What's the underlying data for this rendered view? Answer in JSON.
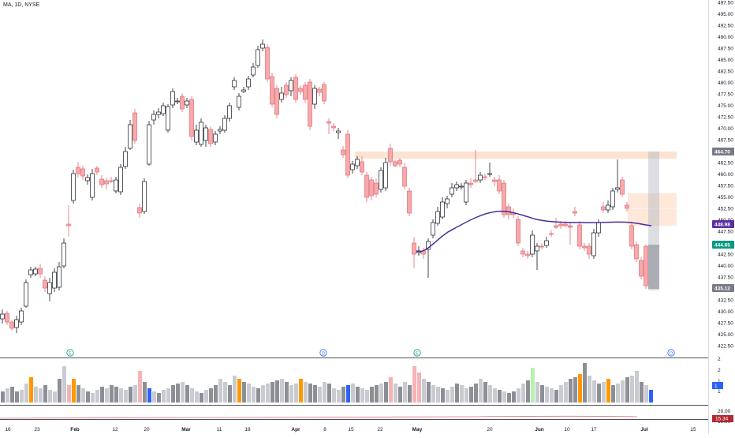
{
  "header": {
    "symbol_line": "MA, 1D, NYSE"
  },
  "price_axis": {
    "labels": [
      "497.50",
      "495.00",
      "492.50",
      "490.00",
      "487.50",
      "485.00",
      "482.50",
      "480.00",
      "477.50",
      "475.00",
      "472.50",
      "470.00",
      "467.50",
      "465.00",
      "462.50",
      "460.00",
      "457.50",
      "455.00",
      "452.50",
      "450.00",
      "447.50",
      "445.00",
      "442.50",
      "440.00",
      "437.50",
      "435.00",
      "432.50",
      "430.00",
      "427.50",
      "425.00",
      "422.50"
    ],
    "markers": [
      {
        "label": "464.70",
        "bg": "#787b86",
        "fg": "#ffffff"
      },
      {
        "label": "448.98",
        "bg": "#5b2fa3",
        "fg": "#ffffff"
      },
      {
        "label": "444.65",
        "bg": "#089981",
        "fg": "#ffffff"
      },
      {
        "label": "435.12",
        "bg": "#787b86",
        "fg": "#ffffff"
      }
    ]
  },
  "time_axis": {
    "labels": [
      {
        "text": "16",
        "bold": false
      },
      {
        "text": "23",
        "bold": false
      },
      {
        "text": "Feb",
        "bold": true
      },
      {
        "text": "12",
        "bold": false
      },
      {
        "text": "20",
        "bold": false
      },
      {
        "text": "Mar",
        "bold": true
      },
      {
        "text": "11",
        "bold": false
      },
      {
        "text": "18",
        "bold": false
      },
      {
        "text": "Apr",
        "bold": true
      },
      {
        "text": "8",
        "bold": false
      },
      {
        "text": "15",
        "bold": false
      },
      {
        "text": "22",
        "bold": false
      },
      {
        "text": "May",
        "bold": true
      },
      {
        "text": "20",
        "bold": false
      },
      {
        "text": "Jun",
        "bold": true
      },
      {
        "text": "10",
        "bold": false
      },
      {
        "text": "17",
        "bold": false
      },
      {
        "text": "Jul",
        "bold": true
      },
      {
        "text": "15",
        "bold": false
      }
    ]
  },
  "events": [
    "E",
    "D",
    "E",
    "D"
  ],
  "volume_axis": {
    "labels": [
      "2",
      "2",
      "1",
      "1"
    ],
    "marker": "1"
  },
  "indicator_axis": {
    "labels": [
      "20.00",
      "10.00"
    ],
    "marker": "15.34"
  },
  "colors": {
    "up_body": "#ffffff",
    "up_border": "#131722",
    "down_body": "#f7a9ac",
    "down_border": "#e06c73",
    "ma_line": "#4a2a9c",
    "zone": "#fbd9c2",
    "volume_gray": "#c9cbd1",
    "volume_dark": "#8c8f96",
    "volume_pink": "#f6b3b7",
    "volume_orange": "#ff9800",
    "volume_blue": "#2962ff",
    "volume_green": "#b9f1b0",
    "indicator_line": "#e06c73",
    "event_green": "#089981",
    "event_blue": "#2962ff"
  }
}
